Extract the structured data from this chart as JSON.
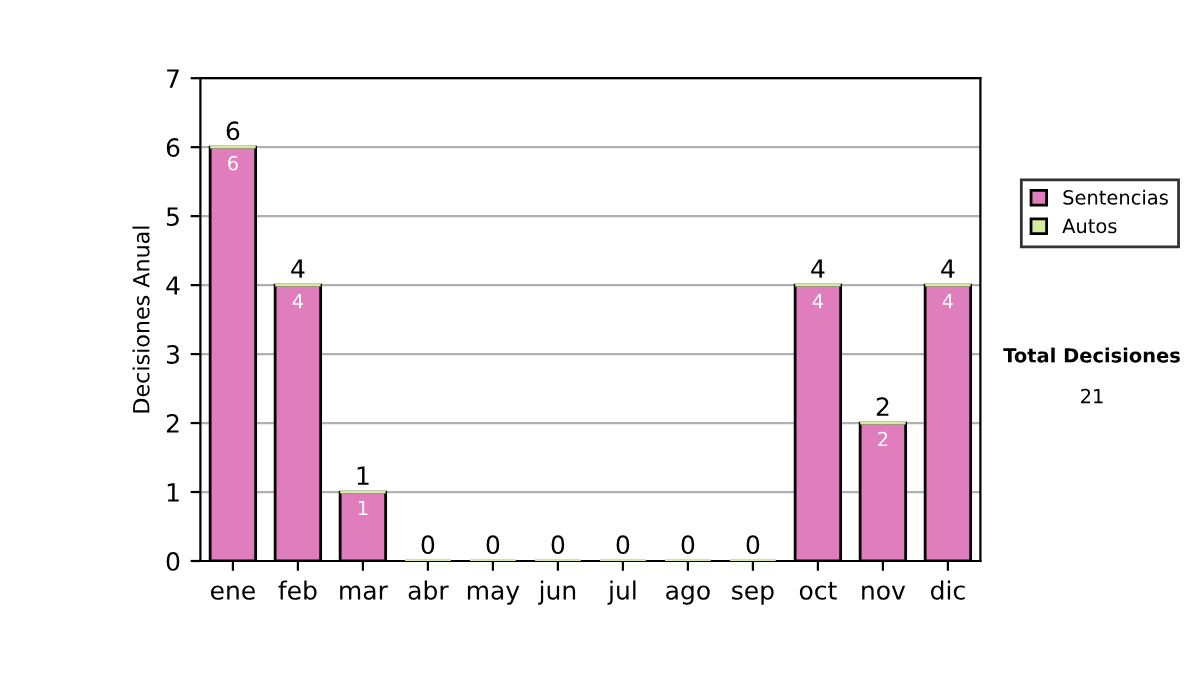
{
  "chart_data": {
    "type": "bar",
    "stacked": true,
    "ylabel": "Decisiones Anual",
    "categories": [
      "ene",
      "feb",
      "mar",
      "abr",
      "may",
      "jun",
      "jul",
      "ago",
      "sep",
      "oct",
      "nov",
      "dic"
    ],
    "series": [
      {
        "name": "Sentencias",
        "color": "#e07dbd",
        "values": [
          6,
          4,
          1,
          0,
          0,
          0,
          0,
          0,
          0,
          4,
          2,
          4
        ],
        "value_labels": [
          "6",
          "4",
          "1",
          null,
          null,
          null,
          null,
          null,
          null,
          "4",
          "2",
          "4"
        ]
      },
      {
        "name": "Autos",
        "color": "#d6eaa0",
        "values": [
          0,
          0,
          0,
          0,
          0,
          0,
          0,
          0,
          0,
          0,
          0,
          0
        ]
      }
    ],
    "totals": [
      "6",
      "4",
      "1",
      "0",
      "0",
      "0",
      "0",
      "0",
      "0",
      "4",
      "2",
      "4"
    ],
    "ylim": [
      0,
      7
    ],
    "yticks": [
      0,
      1,
      2,
      3,
      4,
      5,
      6,
      7
    ],
    "grid": "y",
    "legend": "right",
    "annotations": [
      "Total Decisiones",
      "21"
    ]
  }
}
